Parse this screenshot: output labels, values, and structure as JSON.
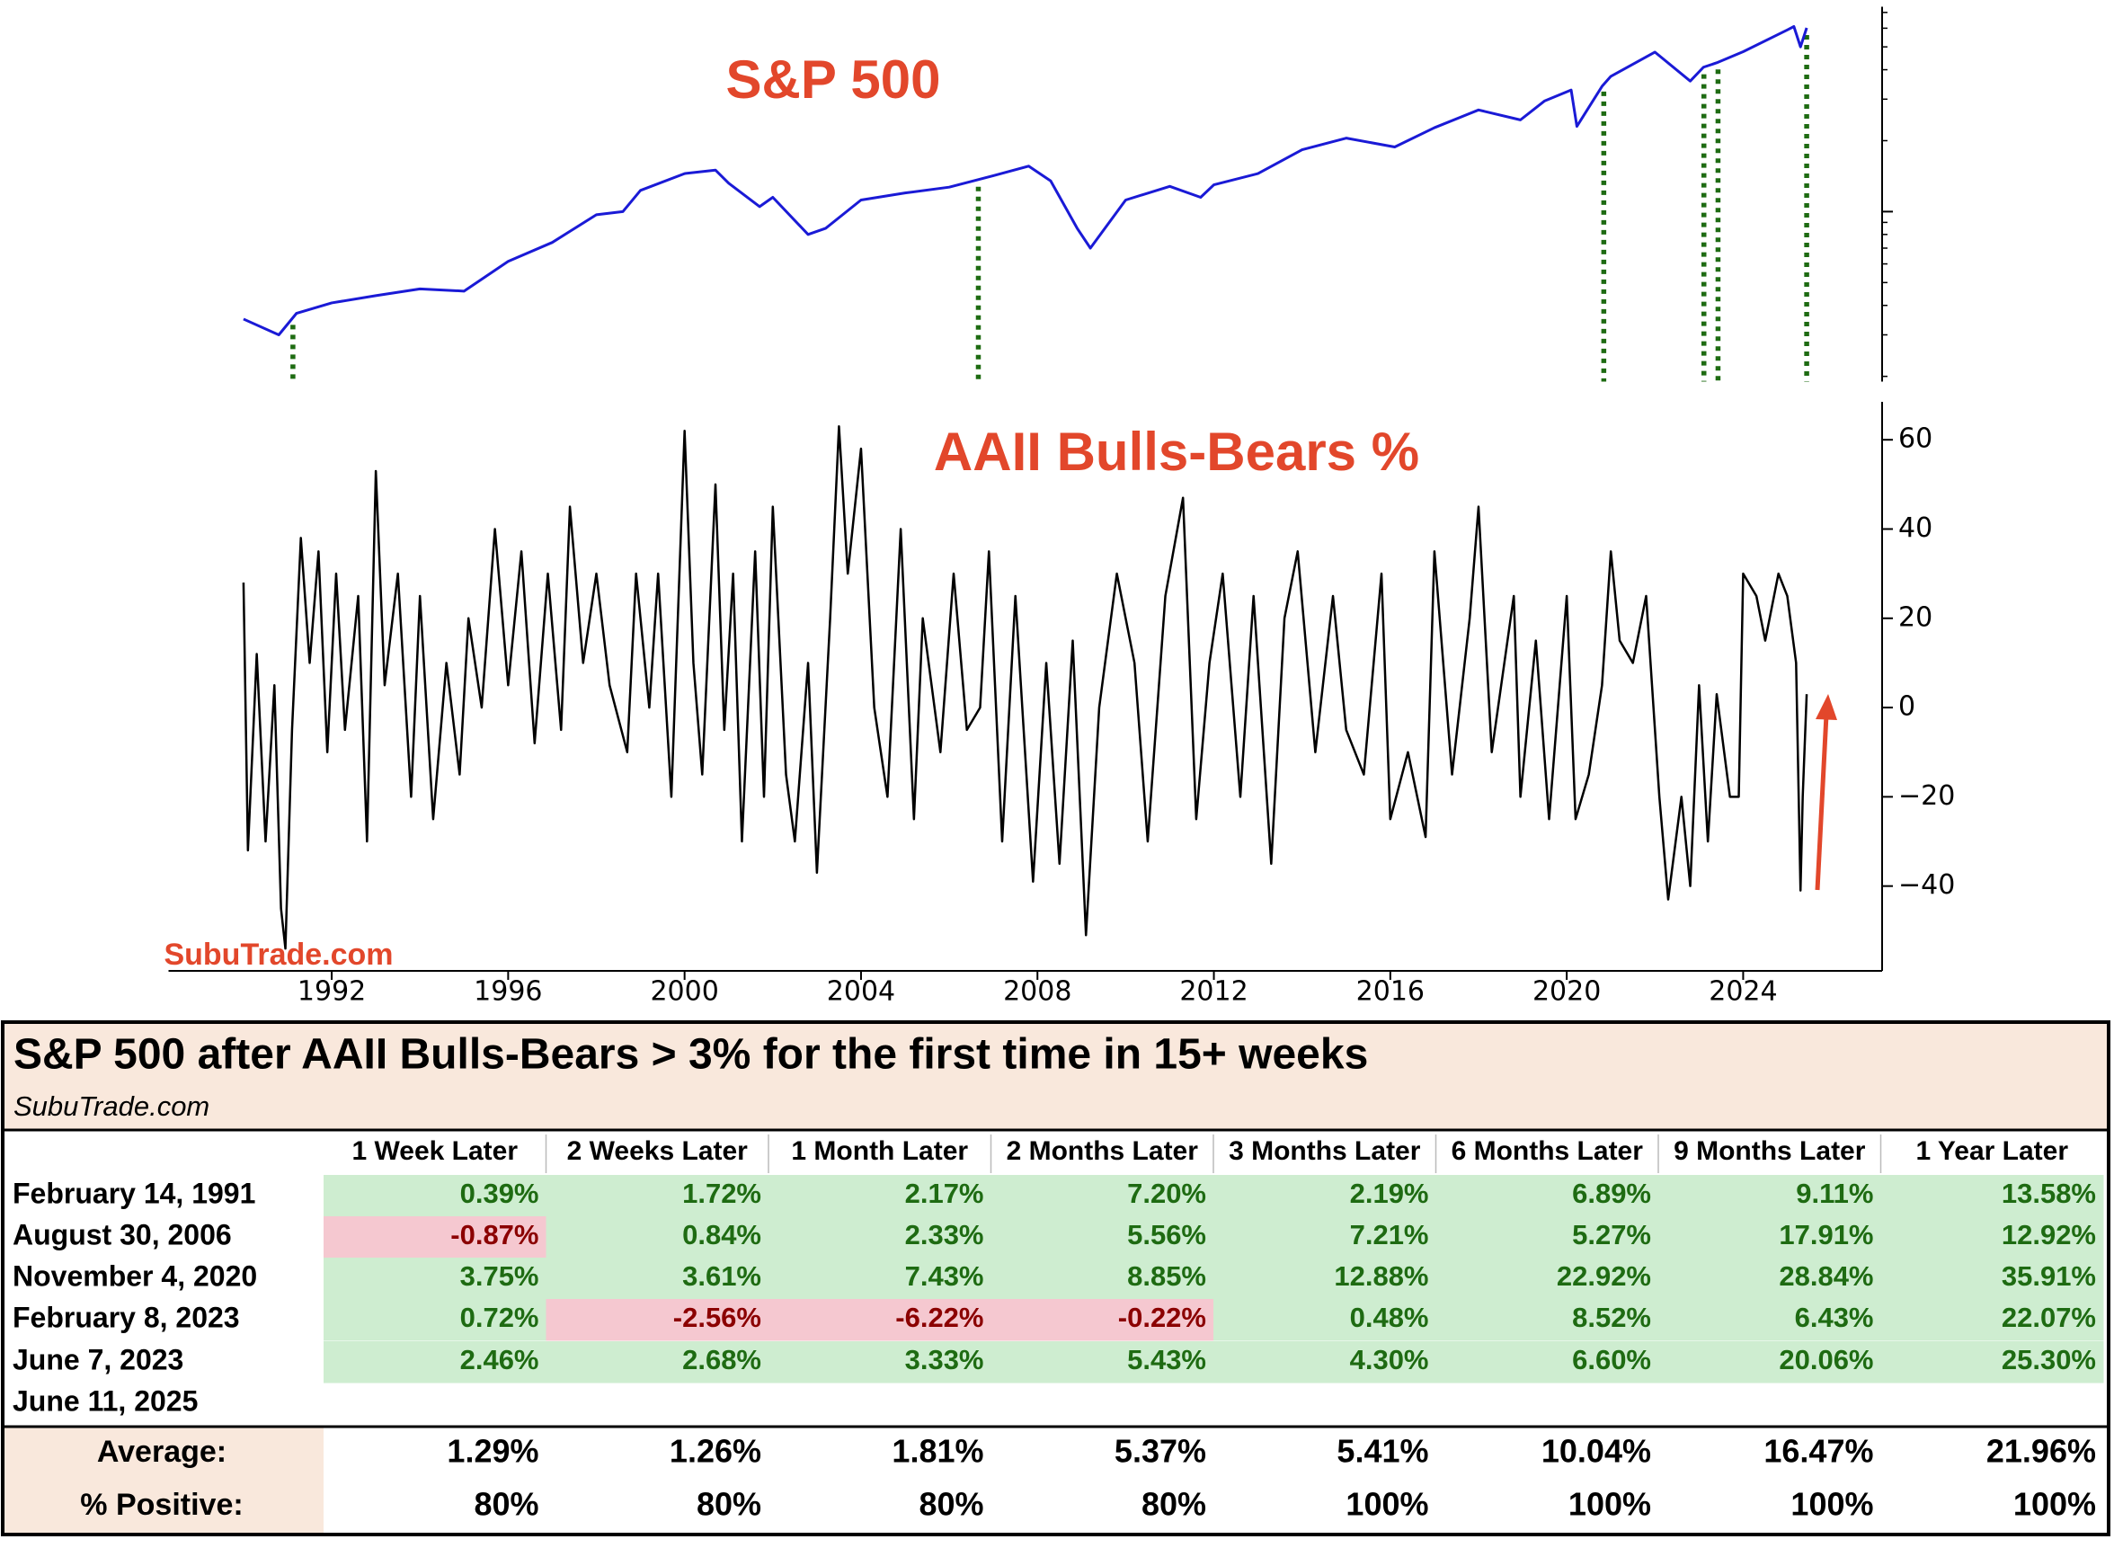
{
  "chart_data": [
    {
      "type": "line",
      "title": "S&P 500",
      "color": "#1a1ad6",
      "log_scale": true,
      "x": [
        1990.0,
        1990.8,
        1991.2,
        1992.0,
        1993.0,
        1994.0,
        1995.0,
        1996.0,
        1997.0,
        1998.0,
        1998.6,
        1999.0,
        2000.0,
        2000.7,
        2001.0,
        2001.7,
        2002.0,
        2002.8,
        2003.2,
        2004.0,
        2005.0,
        2006.0,
        2007.0,
        2007.8,
        2008.3,
        2008.9,
        2009.2,
        2010.0,
        2011.0,
        2011.7,
        2012.0,
        2013.0,
        2014.0,
        2015.0,
        2016.1,
        2017.0,
        2018.0,
        2018.95,
        2019.5,
        2020.1,
        2020.23,
        2020.8,
        2021.0,
        2022.0,
        2022.8,
        2023.1,
        2023.4,
        2024.0,
        2025.0,
        2025.15,
        2025.3,
        2025.44
      ],
      "values": [
        350,
        300,
        370,
        410,
        440,
        470,
        460,
        615,
        740,
        970,
        1000,
        1230,
        1450,
        1500,
        1320,
        1050,
        1150,
        800,
        850,
        1120,
        1200,
        1270,
        1420,
        1560,
        1350,
        850,
        700,
        1120,
        1280,
        1150,
        1300,
        1450,
        1830,
        2050,
        1880,
        2270,
        2700,
        2450,
        2950,
        3280,
        2300,
        3400,
        3750,
        4750,
        3580,
        4100,
        4280,
        4770,
        5900,
        6100,
        5000,
        6020
      ],
      "xlim": [
        1988.3,
        2027.15
      ],
      "ylim": [
        190,
        7400
      ],
      "yticks": [
        1000
      ],
      "yminorticks": [
        200,
        300,
        400,
        500,
        600,
        700,
        800,
        900,
        2000,
        3000,
        4000,
        5000,
        6000,
        7000
      ],
      "event_x": [
        1991.12,
        2006.66,
        2020.84,
        2023.11,
        2023.43,
        2025.44
      ],
      "event_color": "#1e6b12"
    },
    {
      "type": "line",
      "title": "AAII Bulls-Bears %",
      "color": "#000000",
      "annotation": "SubuTrade.com",
      "x": [
        1990.0,
        1990.1,
        1990.3,
        1990.5,
        1990.7,
        1990.85,
        1990.95,
        1991.1,
        1991.3,
        1991.5,
        1991.7,
        1991.9,
        1992.1,
        1992.3,
        1992.6,
        1992.8,
        1993.0,
        1993.2,
        1993.5,
        1993.8,
        1994.0,
        1994.3,
        1994.6,
        1994.9,
        1995.1,
        1995.4,
        1995.7,
        1996.0,
        1996.3,
        1996.6,
        1996.9,
        1997.2,
        1997.4,
        1997.7,
        1998.0,
        1998.3,
        1998.7,
        1998.9,
        1999.2,
        1999.4,
        1999.7,
        2000.0,
        2000.2,
        2000.4,
        2000.7,
        2000.9,
        2001.1,
        2001.3,
        2001.6,
        2001.8,
        2002.0,
        2002.3,
        2002.5,
        2002.8,
        2003.0,
        2003.3,
        2003.5,
        2003.7,
        2004.0,
        2004.3,
        2004.6,
        2004.9,
        2005.2,
        2005.4,
        2005.8,
        2006.1,
        2006.4,
        2006.7,
        2006.9,
        2007.2,
        2007.5,
        2007.9,
        2008.2,
        2008.5,
        2008.8,
        2009.1,
        2009.4,
        2009.8,
        2010.2,
        2010.5,
        2010.9,
        2011.3,
        2011.6,
        2011.9,
        2012.2,
        2012.6,
        2012.9,
        2013.3,
        2013.6,
        2013.9,
        2014.3,
        2014.7,
        2015.0,
        2015.4,
        2015.8,
        2016.0,
        2016.4,
        2016.8,
        2017.0,
        2017.4,
        2017.8,
        2018.0,
        2018.3,
        2018.8,
        2018.95,
        2019.3,
        2019.6,
        2020.0,
        2020.2,
        2020.5,
        2020.8,
        2021.0,
        2021.2,
        2021.5,
        2021.8,
        2022.1,
        2022.3,
        2022.6,
        2022.8,
        2023.0,
        2023.2,
        2023.4,
        2023.7,
        2023.9,
        2024.0,
        2024.3,
        2024.5,
        2024.8,
        2025.0,
        2025.2,
        2025.3,
        2025.35,
        2025.44
      ],
      "values": [
        28,
        -32,
        12,
        -30,
        5,
        -45,
        -54,
        -5,
        38,
        10,
        35,
        -10,
        30,
        -5,
        25,
        -30,
        53,
        5,
        30,
        -20,
        25,
        -25,
        10,
        -15,
        20,
        0,
        40,
        5,
        35,
        -8,
        30,
        -5,
        45,
        10,
        30,
        5,
        -10,
        30,
        0,
        30,
        -20,
        62,
        10,
        -15,
        50,
        -5,
        30,
        -30,
        35,
        -20,
        45,
        -15,
        -30,
        10,
        -37,
        20,
        63,
        30,
        58,
        0,
        -20,
        40,
        -25,
        20,
        -10,
        30,
        -5,
        0,
        35,
        -30,
        25,
        -39,
        10,
        -35,
        15,
        -51,
        0,
        30,
        10,
        -30,
        25,
        47,
        -25,
        10,
        30,
        -20,
        25,
        -35,
        20,
        35,
        -10,
        25,
        -5,
        -15,
        30,
        -25,
        -10,
        -29,
        35,
        -15,
        20,
        45,
        -10,
        25,
        -20,
        15,
        -25,
        25,
        -25,
        -15,
        5,
        35,
        15,
        10,
        25,
        -20,
        -43,
        -20,
        -40,
        5,
        -30,
        3,
        -20,
        -20,
        30,
        25,
        15,
        30,
        25,
        10,
        -41,
        -20,
        3
      ],
      "xlim": [
        1988.3,
        2027.15
      ],
      "xticks": [
        1992,
        1996,
        2000,
        2004,
        2008,
        2012,
        2016,
        2020,
        2024
      ],
      "ylim": [
        -59,
        68.5
      ],
      "yticks": [
        {
          "value": -40,
          "label": "−40"
        },
        {
          "value": -20,
          "label": "−20"
        },
        0,
        20,
        40,
        60
      ]
    }
  ],
  "table": {
    "title": "S&P 500 after AAII Bulls-Bears > 3% for the first time in 15+ weeks",
    "subtitle": "SubuTrade.com",
    "columns": [
      "1 Week Later",
      "2 Weeks Later",
      "1 Month Later",
      "2 Months Later",
      "3 Months Later",
      "6 Months Later",
      "9 Months Later",
      "1 Year Later"
    ],
    "rows": [
      {
        "date": "February 14, 1991",
        "cells": [
          "0.39%",
          "1.72%",
          "2.17%",
          "7.20%",
          "2.19%",
          "6.89%",
          "9.11%",
          "13.58%"
        ]
      },
      {
        "date": "August 30, 2006",
        "cells": [
          "-0.87%",
          "0.84%",
          "2.33%",
          "5.56%",
          "7.21%",
          "5.27%",
          "17.91%",
          "12.92%"
        ]
      },
      {
        "date": "November 4, 2020",
        "cells": [
          "3.75%",
          "3.61%",
          "7.43%",
          "8.85%",
          "12.88%",
          "22.92%",
          "28.84%",
          "35.91%"
        ]
      },
      {
        "date": "February 8, 2023",
        "cells": [
          "0.72%",
          "-2.56%",
          "-6.22%",
          "-0.22%",
          "0.48%",
          "8.52%",
          "6.43%",
          "22.07%"
        ]
      },
      {
        "date": "June 7, 2023",
        "cells": [
          "2.46%",
          "2.68%",
          "3.33%",
          "5.43%",
          "4.30%",
          "6.60%",
          "20.06%",
          "25.30%"
        ]
      },
      {
        "date": "June 11, 2025",
        "cells": []
      }
    ],
    "summary": [
      {
        "label": "Average:",
        "cells": [
          "1.29%",
          "1.26%",
          "1.81%",
          "5.37%",
          "5.41%",
          "10.04%",
          "16.47%",
          "21.96%"
        ]
      },
      {
        "label": "% Positive:",
        "cells": [
          "80%",
          "80%",
          "80%",
          "80%",
          "100%",
          "100%",
          "100%",
          "100%"
        ]
      }
    ]
  }
}
